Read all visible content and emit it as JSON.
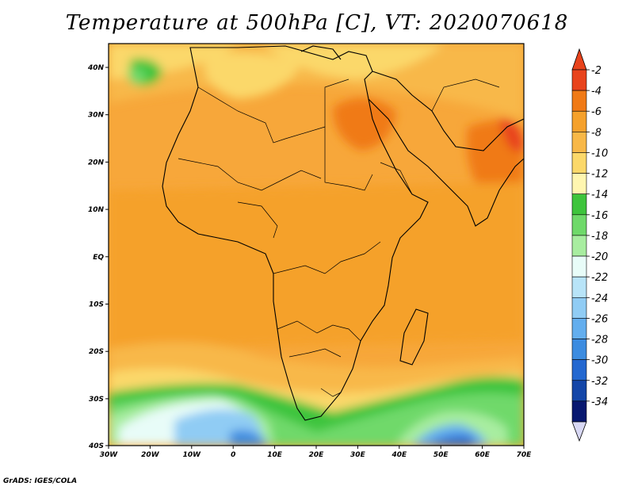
{
  "title": "Temperature at 500hPa [C], VT: 2020070618",
  "footer": "GrADS: IGES/COLA",
  "axes": {
    "lon_ticks": [
      "30W",
      "20W",
      "10W",
      "0",
      "10E",
      "20E",
      "30E",
      "40E",
      "50E",
      "60E",
      "70E"
    ],
    "lat_ticks": [
      "40N",
      "30N",
      "20N",
      "10N",
      "EQ",
      "10S",
      "20S",
      "30S",
      "40S"
    ]
  },
  "colorbar": {
    "levels": [
      "-2",
      "-4",
      "-6",
      "-8",
      "-10",
      "-12",
      "-14",
      "-16",
      "-18",
      "-20",
      "-22",
      "-24",
      "-26",
      "-28",
      "-30",
      "-32",
      "-34"
    ],
    "colors": [
      "#e8431c",
      "#f07a16",
      "#f5a12c",
      "#f8b848",
      "#fbd86a",
      "#fff6b0",
      "#3ec43c",
      "#6fd96a",
      "#a8eda0",
      "#e8fcf8",
      "#b8e4f8",
      "#90ccf4",
      "#63aeee",
      "#3c8ce0",
      "#2468d0",
      "#1446a8",
      "#081870"
    ],
    "top_arrow_color": "#e8431c",
    "bottom_arrow_color": "#d8d8f4"
  }
}
